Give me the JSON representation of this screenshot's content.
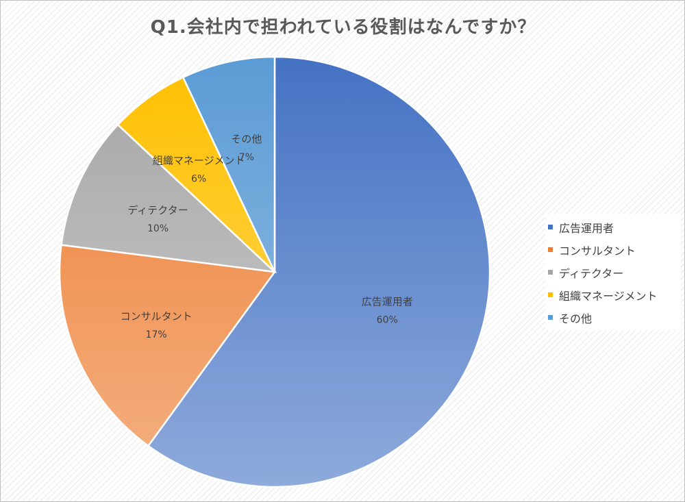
{
  "chart_data": {
    "type": "pie",
    "title": "Q1.会社内で担われている役割はなんですか？",
    "legend_position": "right",
    "slices": [
      {
        "label": "広告運用者",
        "value": 60,
        "value_label": "60%",
        "color": "#4472c4",
        "color_light": "#8eaadb"
      },
      {
        "label": "コンサルタント",
        "value": 17,
        "value_label": "17%",
        "color": "#ed7d31",
        "color_light": "#f4b183"
      },
      {
        "label": "ディテクター",
        "value": 10,
        "value_label": "10%",
        "color": "#a5a5a5",
        "color_light": "#d0d0d0"
      },
      {
        "label": "組織マネージメント",
        "value": 6,
        "value_label": "6%",
        "color": "#ffc000",
        "color_light": "#ffd966"
      },
      {
        "label": "その他",
        "value": 7,
        "value_label": "7%",
        "color": "#5b9bd5",
        "color_light": "#9dc3e6"
      }
    ]
  }
}
